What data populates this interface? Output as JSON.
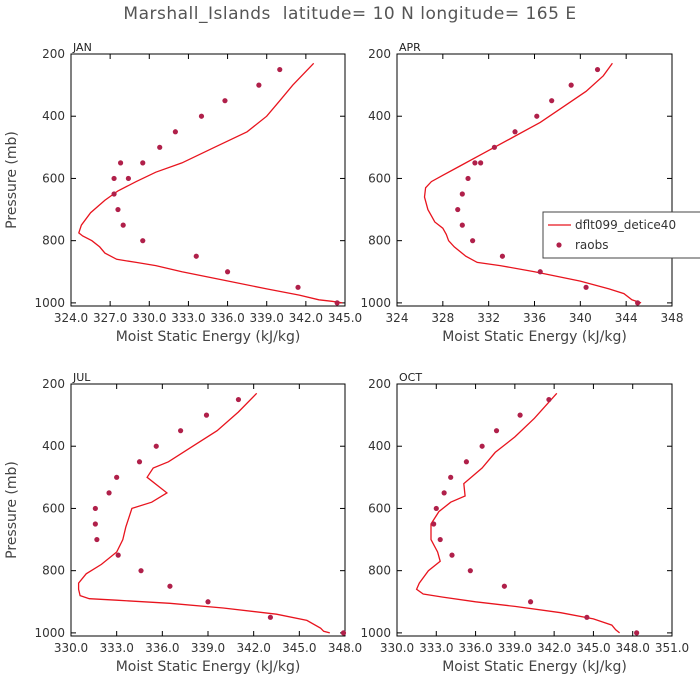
{
  "figure": {
    "title": "Marshall_Islands  latitude= 10 N longitude= 165 E"
  },
  "legend": {
    "panel": 1,
    "entries": [
      {
        "label": "dflt099_detice40",
        "marker": "line",
        "color": "#e8141e"
      },
      {
        "label": "raobs",
        "marker": "dot",
        "color": "#b0204a"
      }
    ]
  },
  "chart_data": [
    {
      "type": "line",
      "panel_label": "JAN",
      "xlabel": "Moist Static Energy (kJ/kg)",
      "ylabel": "Pressure (mb)",
      "xlim": [
        324.0,
        345.0
      ],
      "ylim": [
        1010,
        200
      ],
      "xticks": [
        324.0,
        327.0,
        330.0,
        333.0,
        336.0,
        339.0,
        342.0,
        345.0
      ],
      "xtick_labels": [
        "324.0",
        "327.0",
        "330.0",
        "333.0",
        "336.0",
        "339.0",
        "342.0",
        "345.0"
      ],
      "yticks": [
        200,
        400,
        600,
        800,
        1000
      ],
      "ytick_labels": [
        "200",
        "400",
        "600",
        "800",
        "1000"
      ],
      "series": [
        {
          "name": "dflt099_detice40",
          "kind": "line",
          "x": [
            344.8,
            344.0,
            343.0,
            341.5,
            339.0,
            335.5,
            332.5,
            330.5,
            329.0,
            327.5,
            326.6,
            326.2,
            325.6,
            324.9,
            324.6,
            324.8,
            325.5,
            326.6,
            327.6,
            329.0,
            330.5,
            332.5,
            335.0,
            337.5,
            339.0,
            340.0,
            341.0,
            342.6
          ],
          "y": [
            1000,
            995,
            990,
            975,
            955,
            925,
            900,
            880,
            870,
            860,
            840,
            820,
            800,
            785,
            775,
            750,
            710,
            670,
            640,
            610,
            580,
            550,
            500,
            450,
            400,
            350,
            300,
            230
          ]
        },
        {
          "name": "raobs",
          "kind": "scatter",
          "x": [
            344.4,
            341.4,
            336.0,
            333.6,
            329.5,
            328.0,
            327.6,
            327.3,
            327.3,
            327.8,
            328.4,
            329.5,
            330.8,
            332.0,
            334.0,
            335.8,
            338.4,
            340.0
          ],
          "y": [
            1000,
            950,
            900,
            850,
            800,
            750,
            700,
            650,
            600,
            550,
            600,
            550,
            500,
            450,
            400,
            350,
            300,
            250
          ]
        }
      ]
    },
    {
      "type": "line",
      "panel_label": "APR",
      "xlabel": "Moist Static Energy (kJ/kg)",
      "ylabel": "",
      "xlim": [
        324,
        348
      ],
      "ylim": [
        1010,
        200
      ],
      "xticks": [
        324,
        328,
        332,
        336,
        340,
        344,
        348
      ],
      "xtick_labels": [
        "324",
        "328",
        "332",
        "336",
        "340",
        "344",
        "348"
      ],
      "yticks": [
        200,
        400,
        600,
        800,
        1000
      ],
      "ytick_labels": [
        "200",
        "400",
        "600",
        "800",
        "1000"
      ],
      "series": [
        {
          "name": "dflt099_detice40",
          "kind": "line",
          "x": [
            345.3,
            344.5,
            343.8,
            342.5,
            340.0,
            336.0,
            333.0,
            331.0,
            330.0,
            329.0,
            328.5,
            328.3,
            328.0,
            327.3,
            327.0,
            326.7,
            326.4,
            326.5,
            327.0,
            328.0,
            329.5,
            331.5,
            334.0,
            336.5,
            338.5,
            340.5,
            342.0,
            342.8
          ],
          "y": [
            1000,
            990,
            970,
            955,
            930,
            900,
            880,
            870,
            850,
            820,
            800,
            780,
            760,
            740,
            720,
            700,
            660,
            630,
            610,
            590,
            560,
            520,
            470,
            420,
            370,
            320,
            270,
            230
          ]
        },
        {
          "name": "raobs",
          "kind": "scatter",
          "x": [
            345.0,
            340.5,
            336.5,
            333.2,
            330.6,
            329.7,
            329.3,
            329.7,
            330.2,
            330.8,
            331.3,
            332.5,
            334.3,
            336.2,
            337.5,
            339.2,
            341.5
          ],
          "y": [
            1000,
            950,
            900,
            850,
            800,
            750,
            700,
            650,
            600,
            550,
            550,
            500,
            450,
            400,
            350,
            300,
            250
          ]
        }
      ]
    },
    {
      "type": "line",
      "panel_label": "JUL",
      "xlabel": "Moist Static Energy (kJ/kg)",
      "ylabel": "Pressure (mb)",
      "xlim": [
        330.0,
        348.0
      ],
      "ylim": [
        1010,
        200
      ],
      "xticks": [
        330.0,
        333.0,
        336.0,
        339.0,
        342.0,
        345.0,
        348.0
      ],
      "xtick_labels": [
        "330.0",
        "333.0",
        "336.0",
        "339.0",
        "342.0",
        "345.0",
        "348.0"
      ],
      "yticks": [
        200,
        400,
        600,
        800,
        1000
      ],
      "ytick_labels": [
        "200",
        "400",
        "600",
        "800",
        "1000"
      ],
      "series": [
        {
          "name": "dflt099_detice40",
          "kind": "line",
          "x": [
            347.0,
            346.6,
            346.4,
            345.5,
            343.5,
            340.0,
            336.5,
            333.0,
            331.2,
            330.6,
            330.5,
            330.5,
            331.0,
            332.0,
            333.0,
            333.4,
            333.6,
            334.0,
            335.3,
            336.3,
            335.0,
            335.4,
            336.4,
            338.0,
            339.6,
            341.0,
            342.2
          ],
          "y": [
            1000,
            995,
            985,
            960,
            940,
            920,
            905,
            895,
            890,
            880,
            860,
            840,
            810,
            780,
            740,
            700,
            660,
            600,
            580,
            550,
            500,
            470,
            450,
            400,
            350,
            290,
            230
          ]
        },
        {
          "name": "raobs",
          "kind": "scatter",
          "x": [
            347.9,
            343.1,
            339.0,
            336.5,
            334.6,
            333.1,
            331.7,
            331.6,
            331.6,
            332.5,
            333.0,
            334.5,
            335.6,
            337.2,
            338.9,
            341.0
          ],
          "y": [
            1000,
            950,
            900,
            850,
            800,
            750,
            700,
            650,
            600,
            550,
            500,
            450,
            400,
            350,
            300,
            250
          ]
        }
      ]
    },
    {
      "type": "line",
      "panel_label": "OCT",
      "xlabel": "Moist Static Energy (kJ/kg)",
      "ylabel": "",
      "xlim": [
        330.0,
        351.0
      ],
      "ylim": [
        1010,
        200
      ],
      "xticks": [
        330.0,
        333.0,
        336.0,
        339.0,
        342.0,
        345.0,
        348.0,
        351.0
      ],
      "xtick_labels": [
        "330.0",
        "333.0",
        "336.0",
        "339.0",
        "342.0",
        "345.0",
        "348.0",
        "351.0"
      ],
      "yticks": [
        200,
        400,
        600,
        800,
        1000
      ],
      "ytick_labels": [
        "200",
        "400",
        "600",
        "800",
        "1000"
      ],
      "series": [
        {
          "name": "dflt099_detice40",
          "kind": "line",
          "x": [
            347.0,
            346.7,
            346.4,
            345.0,
            342.5,
            339.0,
            336.0,
            333.5,
            332.0,
            331.5,
            331.7,
            332.4,
            333.3,
            333.1,
            332.6,
            332.6,
            333.2,
            334.1,
            335.2,
            335.1,
            336.5,
            337.5,
            339.0,
            340.5,
            342.2
          ],
          "y": [
            1000,
            990,
            975,
            955,
            935,
            915,
            900,
            885,
            875,
            860,
            840,
            800,
            770,
            740,
            700,
            650,
            610,
            580,
            560,
            520,
            470,
            420,
            370,
            310,
            230
          ]
        },
        {
          "name": "raobs",
          "kind": "scatter",
          "x": [
            348.3,
            344.5,
            340.2,
            338.2,
            335.6,
            334.2,
            333.3,
            332.8,
            333.0,
            333.6,
            334.1,
            335.3,
            336.5,
            337.6,
            339.4,
            341.6
          ],
          "y": [
            1000,
            950,
            900,
            850,
            800,
            750,
            700,
            650,
            600,
            550,
            500,
            450,
            400,
            350,
            300,
            250
          ]
        }
      ]
    }
  ]
}
